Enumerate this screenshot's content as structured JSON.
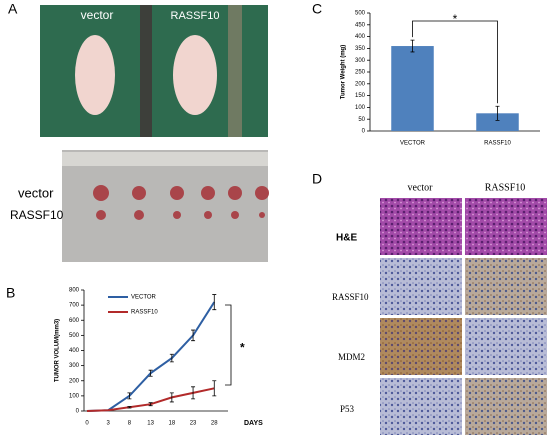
{
  "panels": {
    "a": {
      "label": "A",
      "photo_labels": [
        "vector",
        "RASSF10"
      ],
      "row_labels": [
        "vector",
        "RASSF10"
      ]
    },
    "d": {
      "label": "D",
      "col_labels": [
        "vector",
        "RASSF10"
      ],
      "row_labels": [
        "H&E",
        "RASSF10",
        "MDM2",
        "P53"
      ]
    }
  },
  "chart_data": [
    {
      "type": "line",
      "panel_label": "B",
      "ylabel": "TUMOR VOLUM(mm3)",
      "xlabel": "DAYS",
      "categories": [
        "0",
        "3",
        "8",
        "13",
        "18",
        "23",
        "28"
      ],
      "series": [
        {
          "name": "VECTOR",
          "color": "#2e5fa3",
          "values": [
            0,
            5,
            100,
            250,
            350,
            500,
            720
          ],
          "errors": [
            0,
            0,
            20,
            20,
            25,
            35,
            50
          ]
        },
        {
          "name": "RASSF10",
          "color": "#b22a2a",
          "values": [
            0,
            5,
            25,
            45,
            90,
            120,
            150
          ],
          "errors": [
            0,
            0,
            5,
            10,
            30,
            40,
            50
          ]
        }
      ],
      "ylim": [
        0,
        800
      ],
      "yticks": [
        0,
        100,
        200,
        300,
        400,
        500,
        600,
        700,
        800
      ],
      "annotation": "*"
    },
    {
      "type": "bar",
      "panel_label": "C",
      "ylabel": "Tumor Weight (mg)",
      "categories": [
        "VECTOR",
        "RASSF10"
      ],
      "values": [
        360,
        75
      ],
      "errors": [
        25,
        30
      ],
      "color": "#4f81bd",
      "ylim": [
        0,
        500
      ],
      "yticks": [
        0,
        50,
        100,
        150,
        200,
        250,
        300,
        350,
        400,
        450,
        500
      ],
      "annotation": "*"
    }
  ]
}
